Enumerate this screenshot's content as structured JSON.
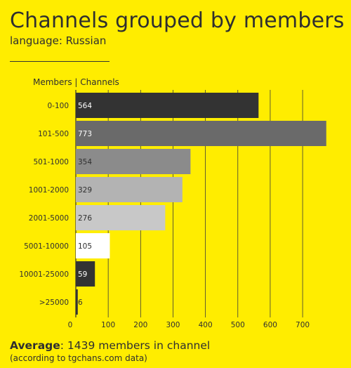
{
  "header": {
    "title": "Channels grouped by members",
    "subtitle": "language: Russian"
  },
  "footer": {
    "average_label": "Average",
    "average_text": ": 1439 members in channel",
    "note": "(according to tgchans.com data)"
  },
  "chart_data": {
    "type": "bar",
    "orientation": "horizontal",
    "title": "Channels grouped by members",
    "subtitle": "language: Russian",
    "axis_header": "Members | Channels",
    "categories": [
      "0-100",
      "101-500",
      "501-1000",
      "1001-2000",
      "2001-5000",
      "5001-10000",
      "10001-25000",
      ">25000"
    ],
    "values": [
      564,
      773,
      354,
      329,
      276,
      105,
      59,
      6
    ],
    "bar_colors": [
      "#333333",
      "#6a6a6a",
      "#8b8b8b",
      "#b3b3b3",
      "#c8c8c8",
      "#ffffff",
      "#333333",
      "#333333"
    ],
    "label_colors": [
      "#ffffff",
      "#ffffff",
      "#2f2f2f",
      "#2f2f2f",
      "#2f2f2f",
      "#2f2f2f",
      "#ffffff",
      "#2f2f2f"
    ],
    "xticks": [
      0,
      100,
      200,
      300,
      400,
      500,
      600,
      700
    ],
    "xlim": [
      0,
      780
    ],
    "grid": true,
    "grid_color": "#3a3a3a"
  }
}
